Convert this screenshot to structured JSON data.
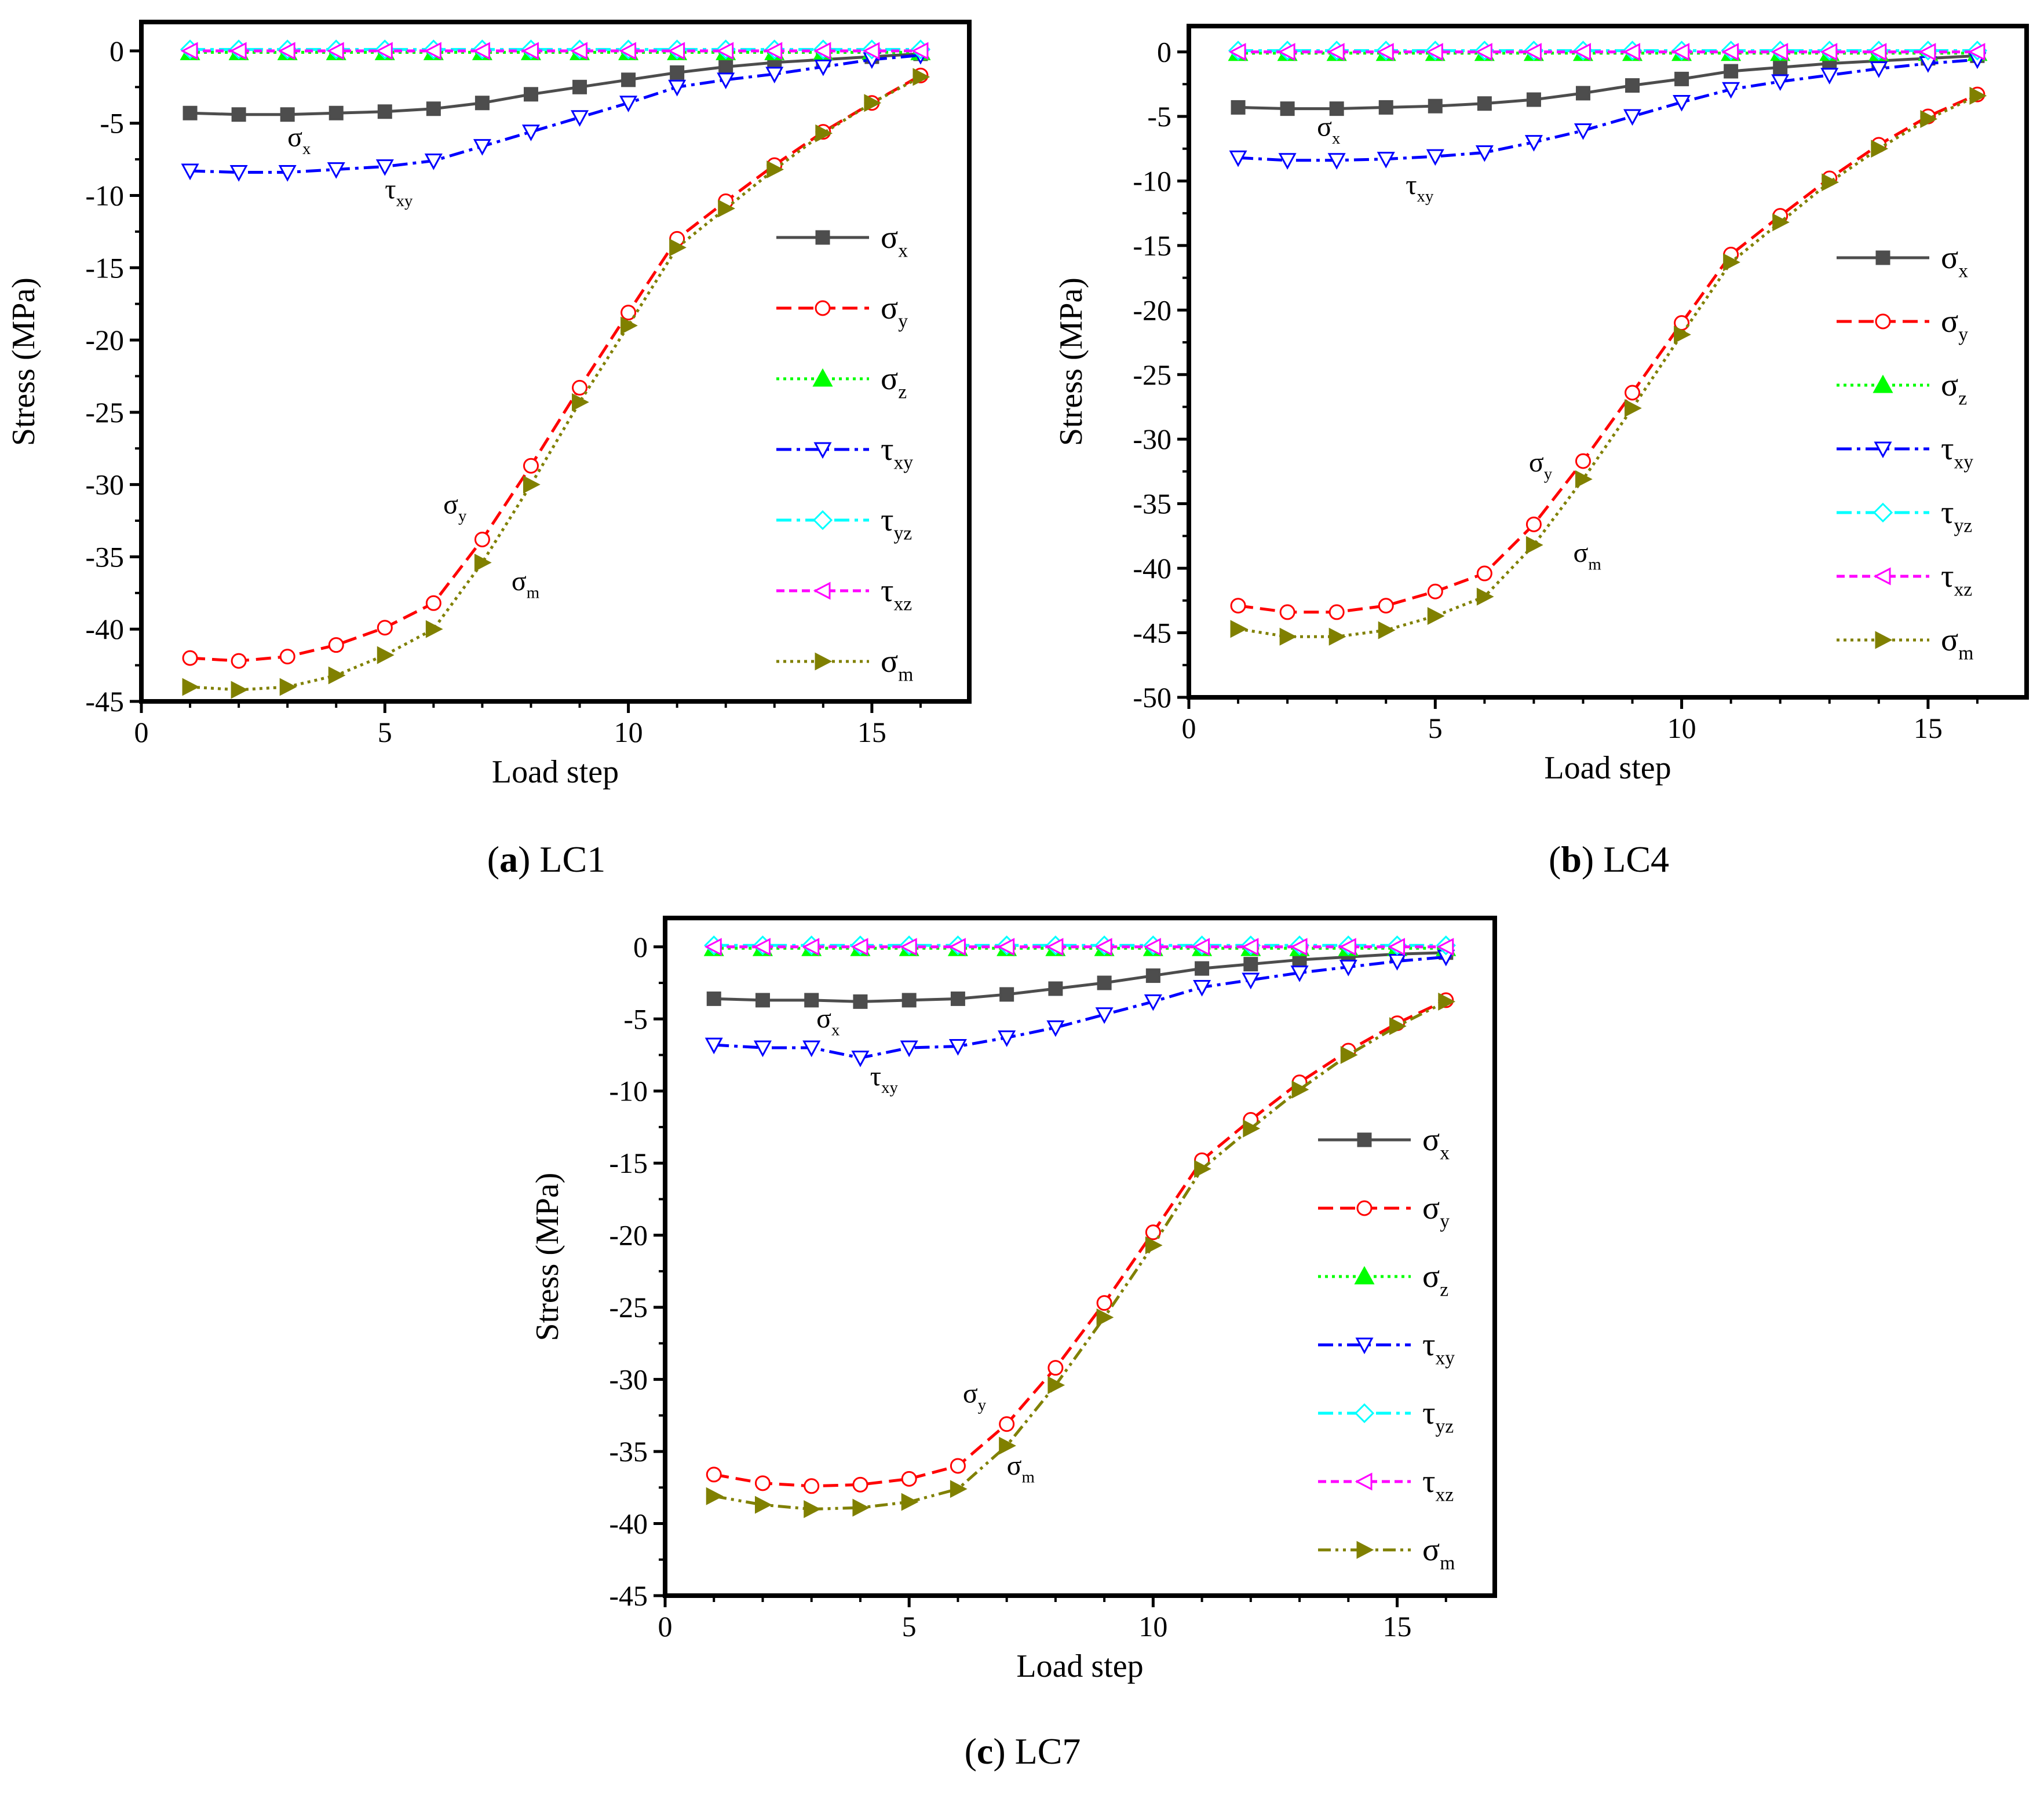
{
  "chart_data": [
    {
      "type": "line",
      "caption_label": "a",
      "caption_text": "LC1",
      "xlabel": "Load step",
      "ylabel": "Stress (MPa)",
      "xlim": [
        0,
        17
      ],
      "ylim": [
        -45,
        2
      ],
      "xticks": [
        0,
        5,
        10,
        15
      ],
      "yticks": [
        0,
        -5,
        -10,
        -15,
        -20,
        -25,
        -30,
        -35,
        -40,
        -45
      ],
      "legend_position": "right",
      "x": [
        1,
        2,
        3,
        4,
        5,
        6,
        7,
        8,
        9,
        10,
        11,
        12,
        13,
        14,
        15,
        16
      ],
      "series": [
        {
          "name": "σx",
          "base": "σ",
          "sub": "x",
          "color": "#4d4d4d",
          "dash": "solid",
          "marker": "square",
          "values": [
            -4.3,
            -4.4,
            -4.4,
            -4.3,
            -4.2,
            -4.0,
            -3.6,
            -3.0,
            -2.5,
            -2.0,
            -1.5,
            -1.1,
            -0.8,
            -0.6,
            -0.4,
            -0.2
          ]
        },
        {
          "name": "σy",
          "base": "σ",
          "sub": "y",
          "color": "#ff0000",
          "dash": "dash",
          "marker": "circle",
          "values": [
            -42.0,
            -42.2,
            -41.9,
            -41.1,
            -39.9,
            -38.2,
            -33.8,
            -28.7,
            -23.3,
            -18.1,
            -13.0,
            -10.4,
            -7.9,
            -5.6,
            -3.6,
            -1.7
          ]
        },
        {
          "name": "σz",
          "base": "σ",
          "sub": "z",
          "color": "#00ff00",
          "dash": "dot",
          "marker": "triangle-up",
          "values": [
            -0.1,
            -0.1,
            -0.1,
            -0.1,
            -0.1,
            -0.1,
            -0.1,
            -0.1,
            -0.1,
            -0.1,
            -0.1,
            -0.1,
            -0.1,
            -0.1,
            -0.1,
            -0.1
          ]
        },
        {
          "name": "τxy",
          "base": "τ",
          "sub": "xy",
          "color": "#0000ff",
          "dash": "dashdot",
          "marker": "triangle-down",
          "values": [
            -8.3,
            -8.4,
            -8.4,
            -8.2,
            -8.0,
            -7.6,
            -6.6,
            -5.6,
            -4.6,
            -3.6,
            -2.5,
            -2.0,
            -1.6,
            -1.1,
            -0.6,
            -0.3
          ]
        },
        {
          "name": "τyz",
          "base": "τ",
          "sub": "yz",
          "color": "#00ffff",
          "dash": "dashdot",
          "marker": "diamond",
          "values": [
            0.1,
            0.1,
            0.1,
            0.1,
            0.1,
            0.1,
            0.1,
            0.1,
            0.1,
            0.1,
            0.1,
            0.1,
            0.1,
            0.1,
            0.1,
            0.1
          ]
        },
        {
          "name": "τxz",
          "base": "τ",
          "sub": "xz",
          "color": "#ff00ff",
          "dash": "shortdash",
          "marker": "triangle-left",
          "values": [
            0.0,
            0.0,
            0.0,
            0.0,
            0.0,
            0.0,
            0.0,
            0.0,
            0.0,
            0.0,
            0.0,
            0.0,
            0.0,
            0.0,
            0.0,
            0.0
          ]
        },
        {
          "name": "σm",
          "base": "σ",
          "sub": "m",
          "color": "#808000",
          "dash": "dot",
          "marker": "triangle-right",
          "values": [
            -44.0,
            -44.2,
            -44.0,
            -43.2,
            -41.8,
            -40.0,
            -35.4,
            -30.0,
            -24.3,
            -19.0,
            -13.6,
            -10.9,
            -8.2,
            -5.7,
            -3.6,
            -1.8
          ]
        }
      ],
      "annotations": [
        {
          "base": "σ",
          "sub": "x",
          "x": 3.0,
          "y": -6.6
        },
        {
          "base": "τ",
          "sub": "xy",
          "x": 5.0,
          "y": -10.2
        },
        {
          "base": "σ",
          "sub": "y",
          "x": 6.2,
          "y": -32.0
        },
        {
          "base": "σ",
          "sub": "m",
          "x": 7.6,
          "y": -37.3
        }
      ]
    },
    {
      "type": "line",
      "caption_label": "b",
      "caption_text": "LC4",
      "xlabel": "Load step",
      "ylabel": "Stress (MPa)",
      "xlim": [
        0,
        17
      ],
      "ylim": [
        -50,
        2
      ],
      "xticks": [
        0,
        5,
        10,
        15
      ],
      "yticks": [
        0,
        -5,
        -10,
        -15,
        -20,
        -25,
        -30,
        -35,
        -40,
        -45,
        -50
      ],
      "legend_position": "right",
      "x": [
        1,
        2,
        3,
        4,
        5,
        6,
        7,
        8,
        9,
        10,
        11,
        12,
        13,
        14,
        15,
        16
      ],
      "series": [
        {
          "name": "σx",
          "base": "σ",
          "sub": "x",
          "color": "#4d4d4d",
          "dash": "solid",
          "marker": "square",
          "values": [
            -4.3,
            -4.4,
            -4.4,
            -4.3,
            -4.2,
            -4.0,
            -3.7,
            -3.2,
            -2.6,
            -2.1,
            -1.5,
            -1.2,
            -0.9,
            -0.7,
            -0.5,
            -0.3
          ]
        },
        {
          "name": "σy",
          "base": "σ",
          "sub": "y",
          "color": "#ff0000",
          "dash": "dash",
          "marker": "circle",
          "values": [
            -42.9,
            -43.4,
            -43.4,
            -42.9,
            -41.8,
            -40.4,
            -36.6,
            -31.7,
            -26.4,
            -21.0,
            -15.7,
            -12.7,
            -9.8,
            -7.2,
            -5.0,
            -3.3
          ]
        },
        {
          "name": "σz",
          "base": "σ",
          "sub": "z",
          "color": "#00ff00",
          "dash": "dot",
          "marker": "triangle-up",
          "values": [
            -0.1,
            -0.1,
            -0.1,
            -0.1,
            -0.1,
            -0.1,
            -0.1,
            -0.1,
            -0.1,
            -0.1,
            -0.1,
            -0.1,
            -0.1,
            -0.1,
            -0.1,
            -0.1
          ]
        },
        {
          "name": "τxy",
          "base": "τ",
          "sub": "xy",
          "color": "#0000ff",
          "dash": "dashdot",
          "marker": "triangle-down",
          "values": [
            -8.2,
            -8.4,
            -8.4,
            -8.3,
            -8.1,
            -7.8,
            -7.0,
            -6.1,
            -5.0,
            -3.9,
            -2.9,
            -2.3,
            -1.8,
            -1.3,
            -0.9,
            -0.6
          ]
        },
        {
          "name": "τyz",
          "base": "τ",
          "sub": "yz",
          "color": "#00ffff",
          "dash": "dashdot",
          "marker": "diamond",
          "values": [
            0.1,
            0.1,
            0.1,
            0.1,
            0.1,
            0.1,
            0.1,
            0.1,
            0.1,
            0.1,
            0.1,
            0.1,
            0.1,
            0.1,
            0.1,
            0.1
          ]
        },
        {
          "name": "τxz",
          "base": "τ",
          "sub": "xz",
          "color": "#ff00ff",
          "dash": "shortdash",
          "marker": "triangle-left",
          "values": [
            0.0,
            0.0,
            0.0,
            0.0,
            0.0,
            0.0,
            0.0,
            0.0,
            0.0,
            0.0,
            0.0,
            0.0,
            0.0,
            0.0,
            0.0,
            0.0
          ]
        },
        {
          "name": "σm",
          "base": "σ",
          "sub": "m",
          "color": "#808000",
          "dash": "dot",
          "marker": "triangle-right",
          "values": [
            -44.7,
            -45.3,
            -45.3,
            -44.8,
            -43.7,
            -42.2,
            -38.2,
            -33.1,
            -27.6,
            -21.9,
            -16.3,
            -13.2,
            -10.1,
            -7.5,
            -5.2,
            -3.4
          ]
        }
      ],
      "annotations": [
        {
          "base": "σ",
          "sub": "x",
          "x": 2.6,
          "y": -6.5
        },
        {
          "base": "τ",
          "sub": "xy",
          "x": 4.4,
          "y": -11.0
        },
        {
          "base": "σ",
          "sub": "y",
          "x": 6.9,
          "y": -32.5
        },
        {
          "base": "σ",
          "sub": "m",
          "x": 7.8,
          "y": -39.5
        }
      ]
    },
    {
      "type": "line",
      "caption_label": "c",
      "caption_text": "LC7",
      "xlabel": "Load step",
      "ylabel": "Stress (MPa)",
      "xlim": [
        0,
        17
      ],
      "ylim": [
        -45,
        2
      ],
      "xticks": [
        0,
        5,
        10,
        15
      ],
      "yticks": [
        0,
        -5,
        -10,
        -15,
        -20,
        -25,
        -30,
        -35,
        -40,
        -45
      ],
      "legend_position": "right",
      "x": [
        1,
        2,
        3,
        4,
        5,
        6,
        7,
        8,
        9,
        10,
        11,
        12,
        13,
        14,
        15,
        16
      ],
      "series": [
        {
          "name": "σx",
          "base": "σ",
          "sub": "x",
          "color": "#4d4d4d",
          "dash": "solid",
          "marker": "square",
          "values": [
            -3.6,
            -3.7,
            -3.7,
            -3.8,
            -3.7,
            -3.6,
            -3.3,
            -2.9,
            -2.5,
            -2.0,
            -1.5,
            -1.2,
            -0.9,
            -0.7,
            -0.5,
            -0.4
          ]
        },
        {
          "name": "σy",
          "base": "σ",
          "sub": "y",
          "color": "#ff0000",
          "dash": "dash",
          "marker": "circle",
          "values": [
            -36.6,
            -37.2,
            -37.4,
            -37.3,
            -36.9,
            -36.0,
            -33.1,
            -29.2,
            -24.7,
            -19.8,
            -14.8,
            -12.0,
            -9.4,
            -7.2,
            -5.3,
            -3.7
          ]
        },
        {
          "name": "σz",
          "base": "σ",
          "sub": "z",
          "color": "#00ff00",
          "dash": "dot",
          "marker": "triangle-up",
          "values": [
            -0.1,
            -0.1,
            -0.1,
            -0.1,
            -0.1,
            -0.1,
            -0.1,
            -0.1,
            -0.1,
            -0.1,
            -0.1,
            -0.1,
            -0.1,
            -0.1,
            -0.1,
            -0.1
          ]
        },
        {
          "name": "τxy",
          "base": "τ",
          "sub": "xy",
          "color": "#0000ff",
          "dash": "dashdot",
          "marker": "triangle-down",
          "values": [
            -6.8,
            -7.0,
            -7.0,
            -7.7,
            -7.0,
            -6.9,
            -6.3,
            -5.6,
            -4.7,
            -3.8,
            -2.8,
            -2.3,
            -1.8,
            -1.4,
            -1.0,
            -0.7
          ]
        },
        {
          "name": "τyz",
          "base": "τ",
          "sub": "yz",
          "color": "#00ffff",
          "dash": "dashdot",
          "marker": "diamond",
          "values": [
            0.1,
            0.1,
            0.1,
            0.1,
            0.1,
            0.1,
            0.1,
            0.1,
            0.1,
            0.1,
            0.1,
            0.1,
            0.1,
            0.1,
            0.1,
            0.1
          ]
        },
        {
          "name": "τxz",
          "base": "τ",
          "sub": "xz",
          "color": "#ff00ff",
          "dash": "shortdash",
          "marker": "triangle-left",
          "values": [
            0.0,
            0.0,
            0.0,
            0.0,
            0.0,
            0.0,
            0.0,
            0.0,
            0.0,
            0.0,
            0.0,
            0.0,
            0.0,
            0.0,
            0.0,
            0.0
          ]
        },
        {
          "name": "σm",
          "base": "σ",
          "sub": "m",
          "color": "#808000",
          "dash": "dashdotdot",
          "marker": "triangle-right",
          "values": [
            -38.1,
            -38.7,
            -39.0,
            -38.9,
            -38.5,
            -37.6,
            -34.6,
            -30.4,
            -25.7,
            -20.7,
            -15.4,
            -12.6,
            -9.9,
            -7.5,
            -5.5,
            -3.8
          ]
        }
      ],
      "annotations": [
        {
          "base": "σ",
          "sub": "x",
          "x": 3.1,
          "y": -5.6
        },
        {
          "base": "τ",
          "sub": "xy",
          "x": 4.2,
          "y": -9.6
        },
        {
          "base": "σ",
          "sub": "y",
          "x": 6.1,
          "y": -31.6
        },
        {
          "base": "σ",
          "sub": "m",
          "x": 7.0,
          "y": -36.6
        }
      ]
    }
  ]
}
